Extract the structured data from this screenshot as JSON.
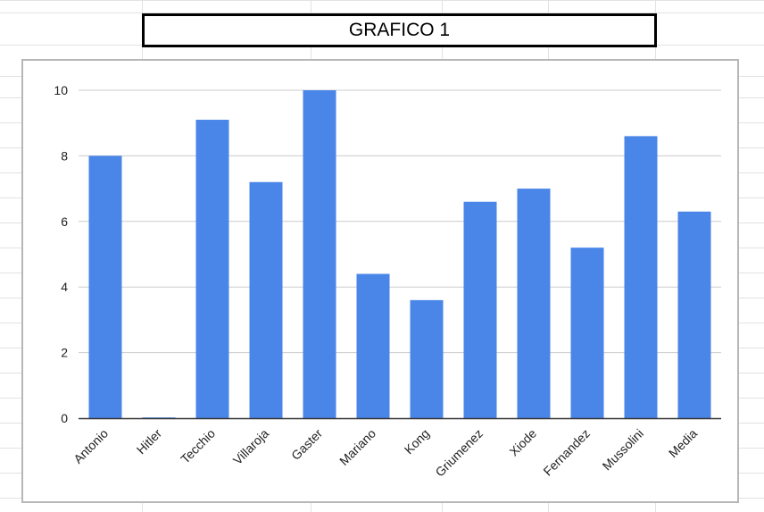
{
  "sheet_title": "GRAFICO 1",
  "chart_data": {
    "type": "bar",
    "title": "",
    "xlabel": "",
    "ylabel": "",
    "categories": [
      "Antonio",
      "Hitler",
      "Tecchio",
      "Villaroja",
      "Gaster",
      "Mariano",
      "Kong",
      "Griumenez",
      "Xiode",
      "Fernandez",
      "Mussolini",
      "Media"
    ],
    "values": [
      8.0,
      0.0,
      9.1,
      7.2,
      10.0,
      4.4,
      3.6,
      6.6,
      7.0,
      5.2,
      8.6,
      6.3
    ],
    "ylim": [
      0,
      10
    ],
    "yticks": [
      0,
      2,
      4,
      6,
      8,
      10
    ],
    "ytick_labels": [
      "0",
      "2",
      "4",
      "6",
      "8",
      "10"
    ],
    "grid": true,
    "legend": "none",
    "colors": {
      "bar": "#4a86e8",
      "grid": "#cccccc",
      "axis": "#333333",
      "sheet_grid": "#e2e2e2"
    }
  }
}
